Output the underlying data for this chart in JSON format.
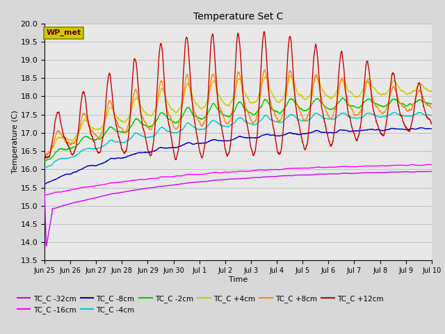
{
  "title": "Temperature Set C",
  "xlabel": "Time",
  "ylabel": "Temperature (C)",
  "ylim": [
    13.5,
    20.0
  ],
  "yticks": [
    13.5,
    14.0,
    14.5,
    15.0,
    15.5,
    16.0,
    16.5,
    17.0,
    17.5,
    18.0,
    18.5,
    19.0,
    19.5,
    20.0
  ],
  "xtick_labels": [
    "Jun 25",
    "Jun 26",
    "Jun 27",
    "Jun 28",
    "Jun 29",
    "Jun 30",
    "Jul 1",
    "Jul 2",
    "Jul 3",
    "Jul 4",
    "Jul 5",
    "Jul 6",
    "Jul 7",
    "Jul 8",
    "Jul 9",
    "Jul 10"
  ],
  "n_points": 2880,
  "series_colors": {
    "TC_C -32cm": "#cc00ff",
    "TC_C -16cm": "#ff00ff",
    "TC_C -8cm": "#0000cc",
    "TC_C -4cm": "#00cccc",
    "TC_C -2cm": "#00cc00",
    "TC_C +4cm": "#cccc00",
    "TC_C +8cm": "#ff8800",
    "TC_C +12cm": "#cc0000"
  },
  "annotation_text": "WP_met",
  "annotation_box_facecolor": "#cccc00",
  "annotation_text_color": "#660000",
  "annotation_edge_color": "#888800",
  "fig_facecolor": "#d8d8d8",
  "plot_facecolor": "#e8e8e8"
}
